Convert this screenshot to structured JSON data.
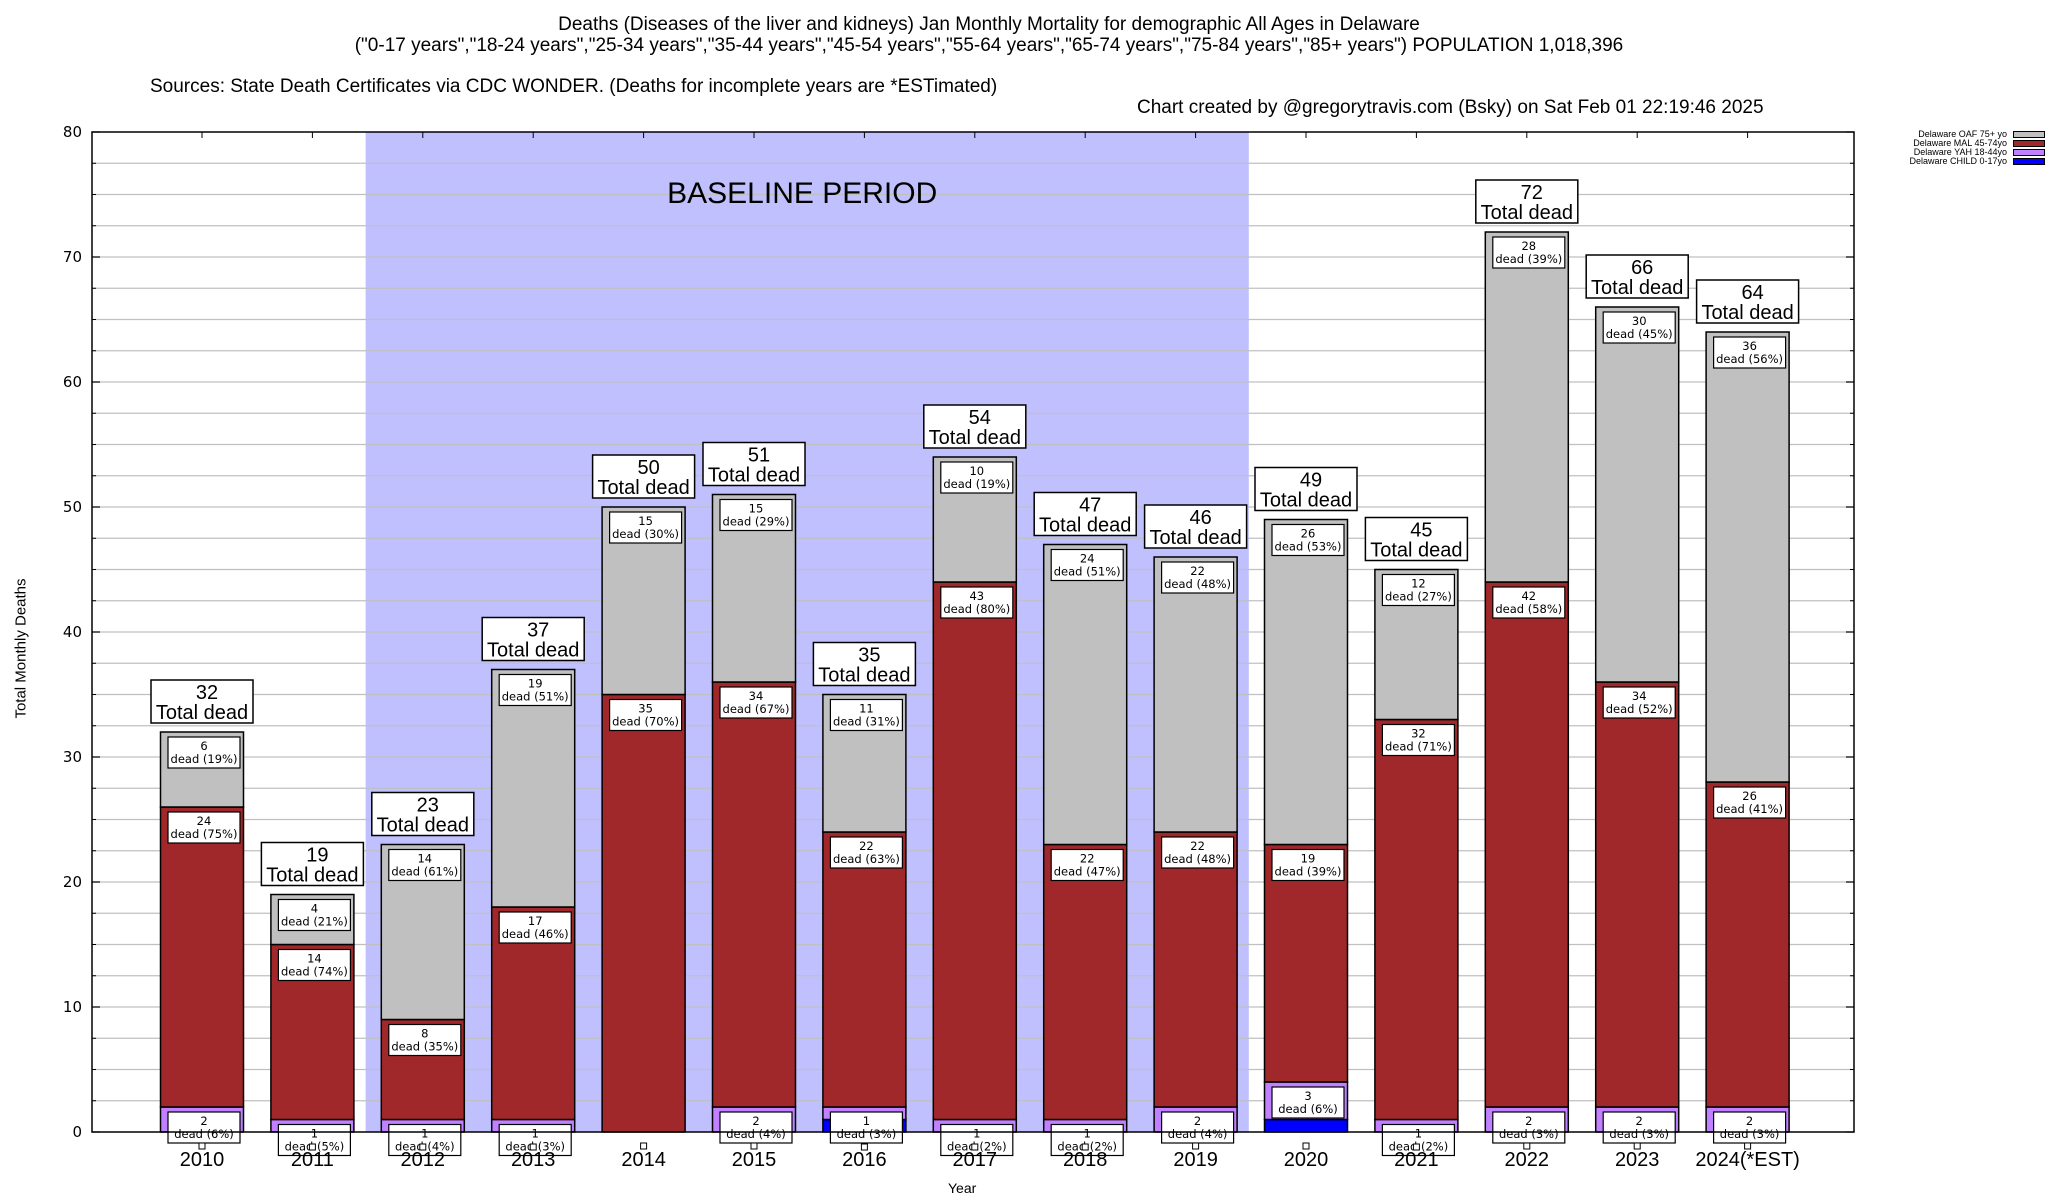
{
  "header": {
    "title_line1": "Deaths (Diseases of the liver and kidneys) Jan Monthly Mortality for demographic All Ages in Delaware",
    "title_line2": "(\"0-17 years\",\"18-24 years\",\"25-34 years\",\"35-44 years\",\"45-54 years\",\"55-64 years\",\"65-74 years\",\"75-84 years\",\"85+ years\") POPULATION 1,018,396",
    "sources": "Sources: State Death Certificates via CDC WONDER. (Deaths for incomplete years are *ESTimated)",
    "credit": "Chart created by @gregorytravis.com (Bsky) on Sat Feb 01 22:19:46 2025"
  },
  "chart_data": {
    "type": "bar",
    "stacked": true,
    "title": "Deaths (Diseases of the liver and kidneys) Jan Monthly Mortality for demographic All Ages in Delaware",
    "xlabel": "Year",
    "ylabel": "Total Monthly Deaths",
    "ylim": [
      0,
      80
    ],
    "yticks": [
      0,
      10,
      20,
      30,
      40,
      50,
      60,
      70,
      80
    ],
    "grid": true,
    "legend_position": "outside-top-right",
    "categories": [
      "2010",
      "2011",
      "2012",
      "2013",
      "2014",
      "2015",
      "2016",
      "2017",
      "2018",
      "2019",
      "2020",
      "2021",
      "2022",
      "2023",
      "2024(*EST)"
    ],
    "series": [
      {
        "name": "Delaware CHILD 0-17yo",
        "color": "#0000ff",
        "values": [
          0,
          0,
          0,
          0,
          0,
          0,
          1,
          0,
          0,
          0,
          1,
          0,
          0,
          0,
          0
        ]
      },
      {
        "name": "Delaware YAH 18-44yo",
        "color": "#c080ff",
        "values": [
          2,
          1,
          1,
          1,
          0,
          2,
          1,
          1,
          1,
          2,
          3,
          1,
          2,
          2,
          2
        ]
      },
      {
        "name": "Delaware MAL 45-74yo",
        "color": "#a0282a",
        "values": [
          24,
          14,
          8,
          17,
          35,
          34,
          22,
          43,
          22,
          22,
          19,
          32,
          42,
          34,
          26
        ]
      },
      {
        "name": "Delaware OAF 75+ yo",
        "color": "#c0c0c0",
        "values": [
          6,
          4,
          14,
          19,
          15,
          15,
          11,
          10,
          24,
          22,
          26,
          12,
          28,
          30,
          36
        ]
      }
    ],
    "totals": [
      32,
      19,
      23,
      37,
      50,
      51,
      35,
      54,
      47,
      46,
      49,
      45,
      72,
      66,
      64
    ],
    "segment_labels": {
      "Delaware OAF 75+ yo": [
        "6\ndead (19%)",
        "4\ndead (21%)",
        "14\ndead (61%)",
        "19\ndead (51%)",
        "15\ndead (30%)",
        "15\ndead (29%)",
        "11\ndead (31%)",
        "10\ndead (19%)",
        "24\ndead (51%)",
        "22\ndead (48%)",
        "26\ndead (53%)",
        "12\ndead (27%)",
        "28\ndead (39%)",
        "30\ndead (45%)",
        "36\ndead (56%)"
      ],
      "Delaware MAL 45-74yo": [
        "24\ndead (75%)",
        "14\ndead (74%)",
        "8\ndead (35%)",
        "17\ndead (46%)",
        "35\ndead (70%)",
        "34\ndead (67%)",
        "22\ndead (63%)",
        "43\ndead (80%)",
        "22\ndead (47%)",
        "22\ndead (48%)",
        "19\ndead (39%)",
        "32\ndead (71%)",
        "42\ndead (58%)",
        "34\ndead (52%)",
        "26\ndead (41%)"
      ],
      "Delaware YAH 18-44yo": [
        "2\ndead (6%)",
        "1\ndead (5%)",
        "1\ndead (4%)",
        "1\ndead (3%)",
        "",
        "2\ndead (4%)",
        "1\ndead (3%)",
        "1\ndead (2%)",
        "1\ndead (2%)",
        "2\ndead (4%)",
        "3\ndead (6%)",
        "1\ndead (2%)",
        "2\ndead (3%)",
        "2\ndead (3%)",
        "2\ndead (3%)"
      ]
    },
    "total_label_suffix": "Total dead",
    "annotation": {
      "text": "BASELINE PERIOD",
      "range_start": "2012",
      "range_end": "2019",
      "color": "#c0c0ff"
    },
    "gridline_color": "#c0c0c0"
  }
}
